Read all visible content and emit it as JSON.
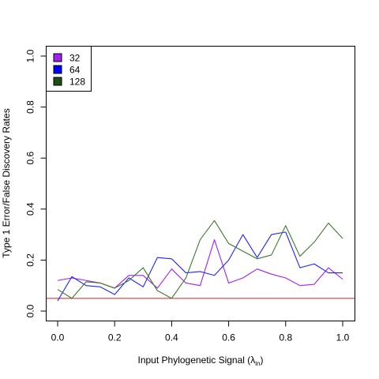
{
  "chart_data": {
    "type": "line",
    "xlabel": "Input Phylogenetic Signal (λ",
    "xlabel_sub": "in",
    "xlabel_close": ")",
    "ylabel": "Type 1 Error/False Discovery Rates",
    "xlim": [
      0,
      1
    ],
    "ylim": [
      0,
      1
    ],
    "x_ticks": [
      "0.0",
      "0.2",
      "0.4",
      "0.6",
      "0.8",
      "1.0"
    ],
    "y_ticks": [
      "0.0",
      "0.2",
      "0.4",
      "0.6",
      "0.8",
      "1.0"
    ],
    "x_tick_values": [
      0,
      0.2,
      0.4,
      0.6,
      0.8,
      1.0
    ],
    "y_tick_values": [
      0,
      0.2,
      0.4,
      0.6,
      0.8,
      1.0
    ],
    "reference_line": {
      "y": 0.05,
      "color": "#cc2222"
    },
    "legend_position": "top-left",
    "x": [
      0,
      0.05,
      0.1,
      0.15,
      0.2,
      0.25,
      0.3,
      0.35,
      0.4,
      0.45,
      0.5,
      0.55,
      0.6,
      0.65,
      0.7,
      0.75,
      0.8,
      0.85,
      0.9,
      0.95,
      1.0
    ],
    "series": [
      {
        "name": "32",
        "color": "#a020f0",
        "legend_fill": "#a020f0",
        "values": [
          0.12,
          0.13,
          0.12,
          0.11,
          0.09,
          0.14,
          0.14,
          0.09,
          0.165,
          0.11,
          0.1,
          0.28,
          0.11,
          0.13,
          0.165,
          0.145,
          0.13,
          0.1,
          0.105,
          0.17,
          0.125
        ]
      },
      {
        "name": "64",
        "color": "#2222ff",
        "legend_fill": "#0000ff",
        "values": [
          0.04,
          0.135,
          0.1,
          0.095,
          0.065,
          0.13,
          0.095,
          0.21,
          0.205,
          0.15,
          0.155,
          0.14,
          0.2,
          0.3,
          0.21,
          0.3,
          0.31,
          0.17,
          0.185,
          0.15,
          0.15
        ]
      },
      {
        "name": "128",
        "color": "#3a7a2a",
        "legend_fill": "#1f4f10",
        "values": [
          0.085,
          0.05,
          0.115,
          0.11,
          0.09,
          0.12,
          0.17,
          0.08,
          0.05,
          0.13,
          0.28,
          0.355,
          0.265,
          0.235,
          0.205,
          0.22,
          0.335,
          0.215,
          0.27,
          0.345,
          0.285
        ]
      }
    ]
  }
}
